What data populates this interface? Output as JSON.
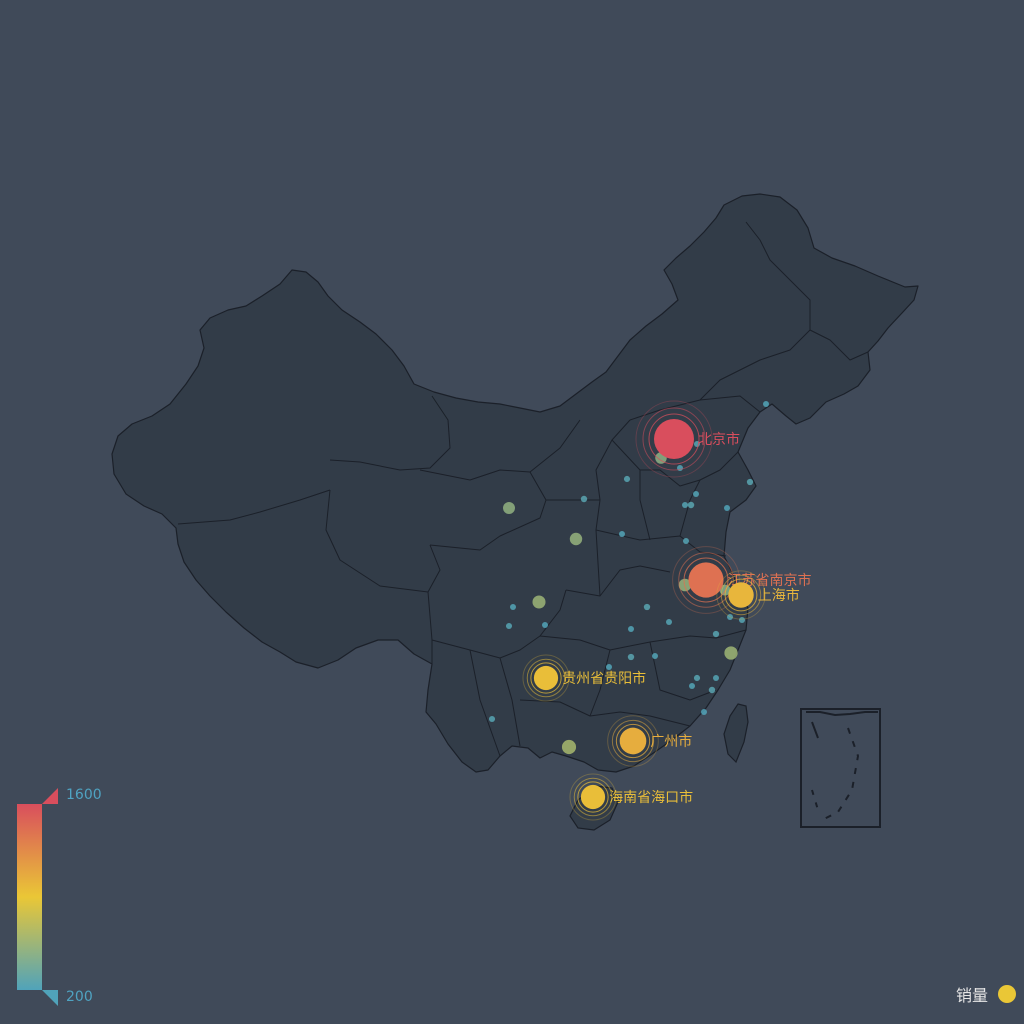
{
  "map": {
    "land_color": "#323c48",
    "border_color": "#1b2029",
    "background": "#404a59"
  },
  "visual_map": {
    "max_label": "1600",
    "min_label": "200",
    "max": 1600,
    "min": 200,
    "colors": [
      "#50a3ba",
      "#eac736",
      "#d94e5d"
    ]
  },
  "legend": {
    "label": "销量",
    "color": "#eac736"
  },
  "chart_data": {
    "type": "scatter",
    "series_name": "销量",
    "highlighted": [
      {
        "name": "北京市",
        "value": 1600
      },
      {
        "name": "江苏省南京市",
        "value": 1400
      },
      {
        "name": "上海市",
        "value": 1000
      },
      {
        "name": "贵州省贵阳市",
        "value": 950
      },
      {
        "name": "广州市",
        "value": 1050
      },
      {
        "name": "海南省海口市",
        "value": 950
      }
    ],
    "other_points": [
      {
        "value": 500
      },
      {
        "value": 520
      },
      {
        "value": 550
      },
      {
        "value": 600
      },
      {
        "value": 480
      },
      {
        "value": 530
      },
      {
        "value": 560
      },
      {
        "value": 450
      },
      {
        "value": 210
      },
      {
        "value": 230
      },
      {
        "value": 220
      },
      {
        "value": 240
      },
      {
        "value": 215
      },
      {
        "value": 225
      },
      {
        "value": 250
      },
      {
        "value": 205
      },
      {
        "value": 235
      },
      {
        "value": 245
      },
      {
        "value": 212
      },
      {
        "value": 228
      },
      {
        "value": 218
      },
      {
        "value": 232
      },
      {
        "value": 208
      },
      {
        "value": 242
      },
      {
        "value": 226
      },
      {
        "value": 214
      },
      {
        "value": 238
      },
      {
        "value": 222
      },
      {
        "value": 230
      },
      {
        "value": 216
      },
      {
        "value": 244
      },
      {
        "value": 211
      },
      {
        "value": 236
      },
      {
        "value": 224
      },
      {
        "value": 219
      },
      {
        "value": 248
      },
      {
        "value": 207
      },
      {
        "value": 233
      }
    ]
  }
}
